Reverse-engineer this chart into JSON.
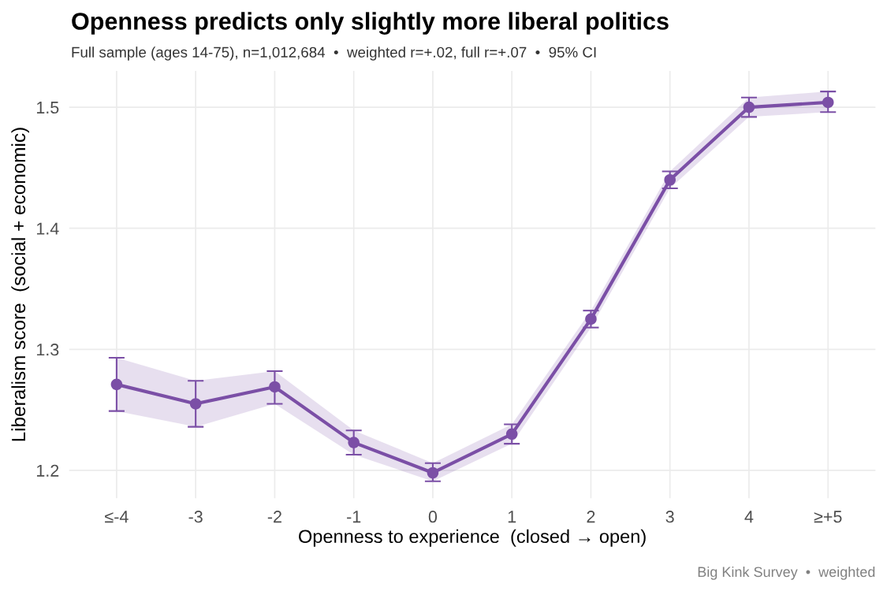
{
  "chart_data": {
    "type": "line",
    "title": "Openness predicts only slightly more liberal politics",
    "subtitle": "Full sample (ages 14-75), n=1,012,684  •  weighted r=+.02, full r=+.07  •  95% CI",
    "xlabel": "Openness to experience  (closed → open)",
    "ylabel": "Liberalism score  (social + economic)",
    "annotations": [
      "Big Kink Survey  •  weighted"
    ],
    "categories": [
      "≤-4",
      "-3",
      "-2",
      "-1",
      "0",
      "1",
      "2",
      "3",
      "4",
      "≥+5"
    ],
    "series": [
      {
        "color": "#7b4fa6",
        "values": [
          1.271,
          1.255,
          1.269,
          1.223,
          1.198,
          1.23,
          1.325,
          1.44,
          1.5,
          1.504
        ],
        "lower": [
          1.249,
          1.236,
          1.255,
          1.213,
          1.191,
          1.222,
          1.318,
          1.433,
          1.492,
          1.496
        ],
        "upper": [
          1.293,
          1.274,
          1.282,
          1.233,
          1.206,
          1.238,
          1.332,
          1.447,
          1.508,
          1.513
        ],
        "errors": [
          [
            1.249,
            1.293
          ],
          [
            1.236,
            1.274
          ],
          [
            1.255,
            1.282
          ],
          [
            1.213,
            1.233
          ],
          [
            1.191,
            1.206
          ],
          [
            1.222,
            1.238
          ],
          [
            1.318,
            1.332
          ],
          [
            1.433,
            1.447
          ],
          [
            1.492,
            1.508
          ],
          [
            1.496,
            1.513
          ]
        ]
      }
    ],
    "ylim": [
      1.177,
      1.53
    ],
    "yticks": [
      1.2,
      1.3,
      1.4,
      1.5
    ],
    "grid": true,
    "marker": "circle",
    "line_style": "solid"
  }
}
